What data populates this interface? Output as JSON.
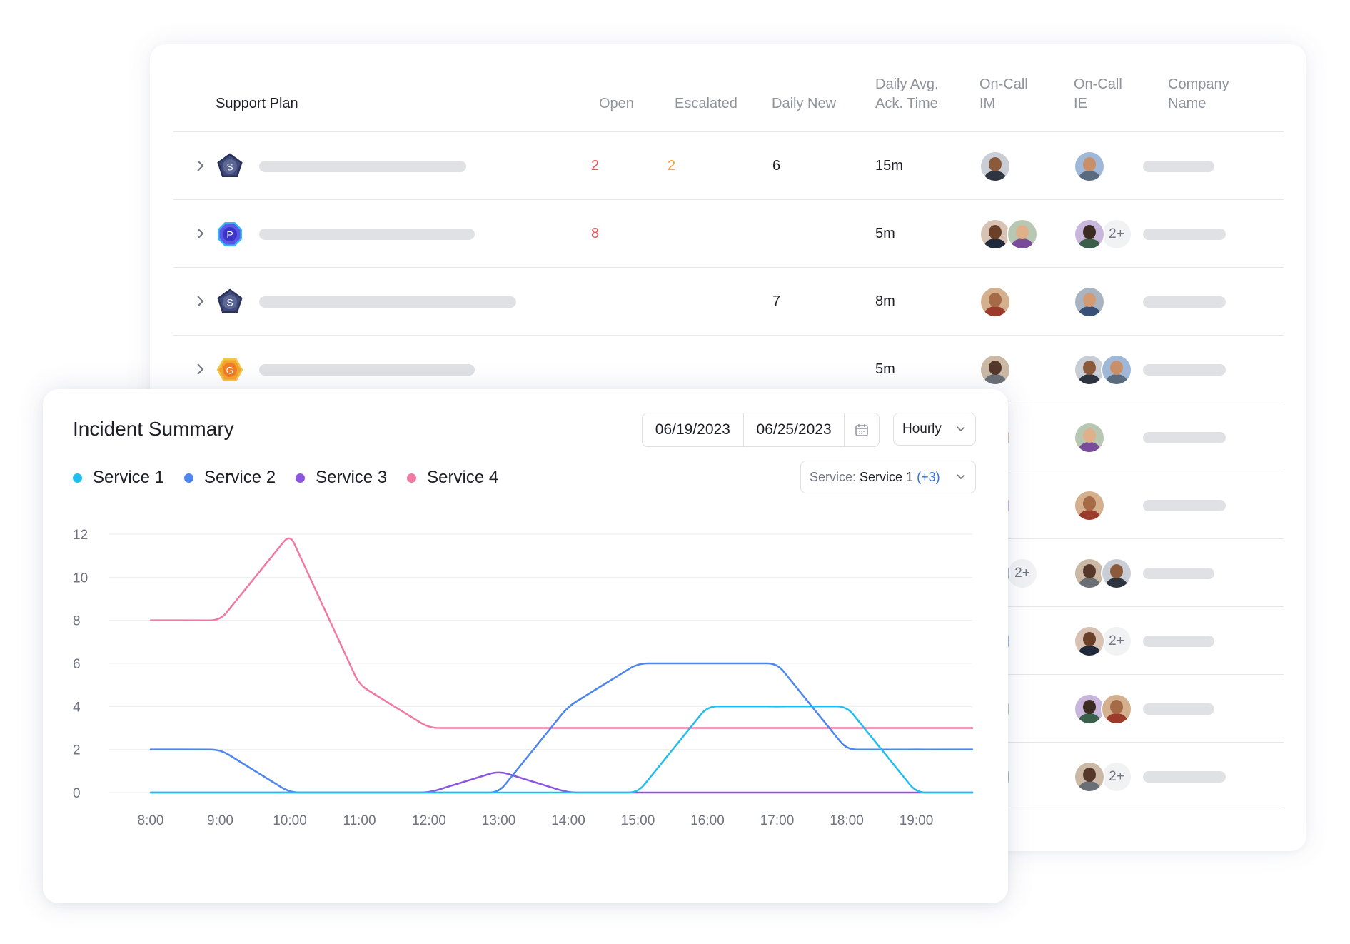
{
  "table": {
    "headers": {
      "plan": "Support Plan",
      "open": "Open",
      "escalated": "Escalated",
      "daily_new": "Daily New",
      "ack": "Daily Avg.\nAck. Time",
      "im": "On-Call\nIM",
      "ie": "On-Call\nIE",
      "company": "Company\nName"
    },
    "rows": [
      {
        "plan_letter": "S",
        "plan_shape": "pentagon",
        "plan_color": "#3f4a7a",
        "open": "2",
        "escalated": "2",
        "daily_new": "6",
        "ack": "15m",
        "im_more": "",
        "ie_more": ""
      },
      {
        "plan_letter": "P",
        "plan_shape": "octagon",
        "plan_color": "#5a57e6",
        "open": "8",
        "escalated": "",
        "daily_new": "",
        "ack": "5m",
        "im_more": "",
        "ie_more": "2+"
      },
      {
        "plan_letter": "S",
        "plan_shape": "pentagon",
        "plan_color": "#3f4a7a",
        "open": "",
        "escalated": "",
        "daily_new": "7",
        "ack": "8m",
        "im_more": "",
        "ie_more": ""
      },
      {
        "plan_letter": "G",
        "plan_shape": "hexagon",
        "plan_color": "#f2a52c",
        "open": "",
        "escalated": "",
        "daily_new": "",
        "ack": "5m",
        "im_more": "",
        "ie_more": ""
      },
      {
        "im_more": "",
        "ie_more": ""
      },
      {
        "im_more": "",
        "ie_more": ""
      },
      {
        "im_more": "2+",
        "ie_more": ""
      },
      {
        "im_more": "",
        "ie_more": "2+"
      },
      {
        "im_more": "",
        "ie_more": ""
      },
      {
        "im_more": "",
        "ie_more": "2+"
      }
    ]
  },
  "summary": {
    "title": "Incident Summary",
    "date_start": "06/19/2023",
    "date_end": "06/25/2023",
    "granularity": "Hourly",
    "service_filter_label": "Service:",
    "service_filter_value": "Service 1",
    "service_filter_more": "(+3)"
  },
  "chart_data": {
    "type": "line",
    "x": [
      "8:00",
      "9:00",
      "10:00",
      "11:00",
      "12:00",
      "13:00",
      "14:00",
      "15:00",
      "16:00",
      "17:00",
      "18:00",
      "19:00",
      "19:50"
    ],
    "x_tick_labels": [
      "8:00",
      "9:00",
      "10:00",
      "11:00",
      "12:00",
      "13:00",
      "14:00",
      "15:00",
      "16:00",
      "17:00",
      "18:00",
      "19:00"
    ],
    "yticks": [
      0,
      2,
      4,
      6,
      8,
      10,
      12
    ],
    "ylim": [
      0,
      12
    ],
    "grid": true,
    "legend": "top-left",
    "series": [
      {
        "name": "Service 1",
        "color": "#22bdf0",
        "values": [
          0,
          0,
          0,
          0,
          0,
          0,
          0,
          0,
          4,
          4,
          4,
          0,
          0
        ]
      },
      {
        "name": "Service 2",
        "color": "#4d86ee",
        "values": [
          2,
          2,
          0,
          0,
          0,
          0,
          4,
          6,
          6,
          6,
          2,
          2,
          2
        ]
      },
      {
        "name": "Service 3",
        "color": "#8b55e0",
        "values": [
          0,
          0,
          0,
          0,
          0,
          1,
          0,
          0,
          0,
          0,
          0,
          0,
          0
        ]
      },
      {
        "name": "Service 4",
        "color": "#f07aa4",
        "values": [
          8,
          8,
          12,
          5,
          3,
          3,
          3,
          3,
          3,
          3,
          3,
          3,
          3
        ]
      }
    ]
  }
}
